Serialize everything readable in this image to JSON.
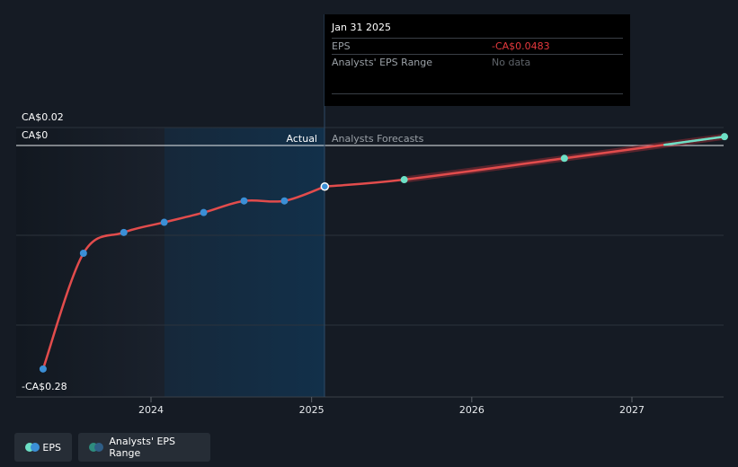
{
  "chart_data": {
    "type": "line",
    "title": "",
    "xlabel": "",
    "ylabel": "",
    "y_tick_labels": [
      "CA$0.02",
      "CA$0",
      "-CA$0.28"
    ],
    "ylim": [
      -0.28,
      0.02
    ],
    "x_tick_labels": [
      "2024",
      "2025",
      "2026",
      "2027"
    ],
    "divider_labels": {
      "actual": "Actual",
      "forecast": "Analysts Forecasts"
    },
    "series": [
      {
        "name": "EPS",
        "segment": "actual",
        "x": [
          "2023-04-30",
          "2023-07-31",
          "2023-10-31",
          "2024-01-31",
          "2024-04-30",
          "2024-07-31",
          "2024-10-31",
          "2025-01-31"
        ],
        "y": [
          -0.2629,
          -0.1268,
          -0.1023,
          -0.0904,
          -0.0789,
          -0.0652,
          -0.0652,
          -0.0483
        ]
      },
      {
        "name": "EPS",
        "segment": "forecast",
        "x": [
          "2025-01-31",
          "2025-07-31",
          "2026-07-31",
          "2027-07-31"
        ],
        "y": [
          -0.0483,
          -0.0402,
          -0.0151,
          0.0104
        ]
      }
    ],
    "grid": true,
    "legend_position": "bottom-left"
  },
  "tooltip": {
    "date": "Jan 31 2025",
    "eps_label": "EPS",
    "eps_value": "-CA$0.0483",
    "range_label": "Analysts' EPS Range",
    "range_value": "No data"
  },
  "legend": {
    "eps": "EPS",
    "range": "Analysts' EPS Range"
  },
  "colors": {
    "line": "#e24c4c",
    "actual_marker": "#3b8fd6",
    "forecast_marker": "#6de0c6",
    "range_band": "#a8303a",
    "forecast_tail": "#6de0c6"
  }
}
